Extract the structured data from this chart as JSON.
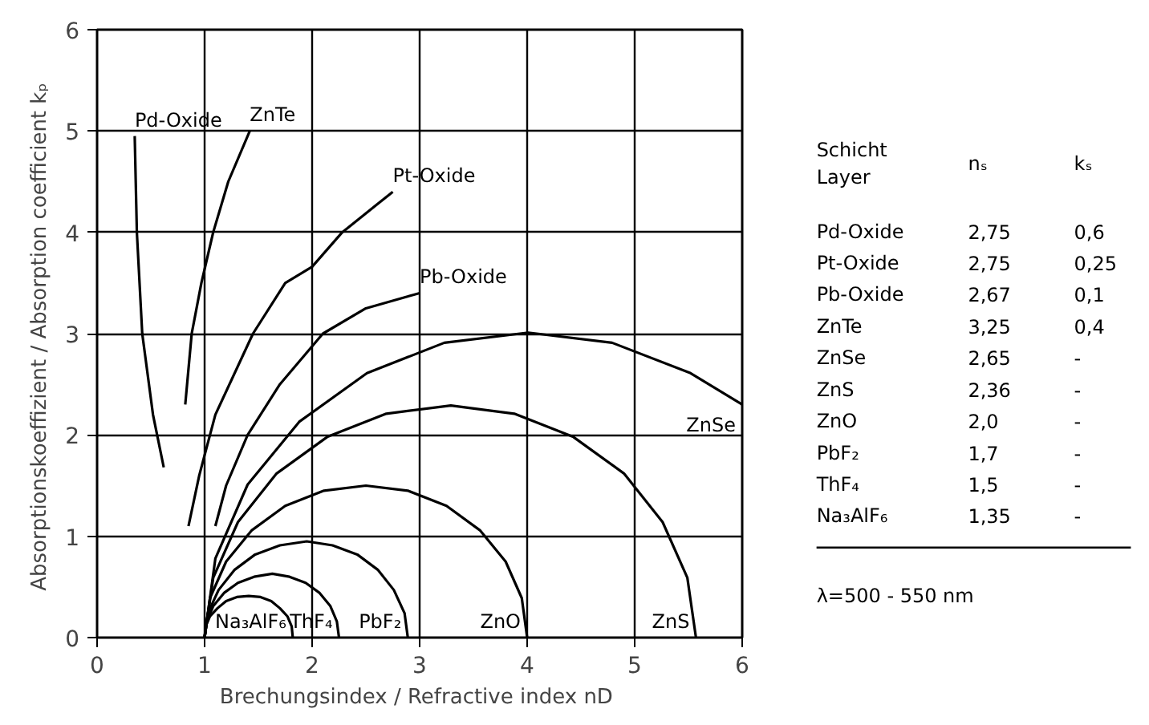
{
  "chart_data": {
    "type": "line",
    "xlabel": "Brechungsindex / Refractive index  nD",
    "ylabel": "Absorptionskoeffizient / Absorption coefficient  kₚ",
    "xlim": [
      0,
      6
    ],
    "ylim": [
      0,
      6
    ],
    "xticks": [
      0,
      1,
      2,
      3,
      4,
      5,
      6
    ],
    "yticks": [
      0,
      1,
      2,
      3,
      4,
      5,
      6
    ],
    "grid": true,
    "marker": "none",
    "line_style": "solid",
    "series": [
      {
        "name": "Pd-Oxide",
        "color": "#000000",
        "x": [
          0.62,
          0.52,
          0.42,
          0.37,
          0.35
        ],
        "values": [
          1.68,
          2.2,
          3.0,
          4.0,
          4.95
        ]
      },
      {
        "name": "ZnTe",
        "color": "#000000",
        "x": [
          0.82,
          0.88,
          0.97,
          1.08,
          1.22,
          1.42
        ],
        "values": [
          2.3,
          3.0,
          3.5,
          4.0,
          4.5,
          5.0
        ]
      },
      {
        "name": "Pt-Oxide",
        "color": "#000000",
        "x": [
          0.85,
          0.95,
          1.1,
          1.45,
          1.75,
          2.0,
          2.28,
          2.75
        ],
        "values": [
          1.1,
          1.6,
          2.2,
          3.0,
          3.5,
          3.66,
          4.0,
          4.4
        ]
      },
      {
        "name": "Pb-Oxide",
        "color": "#000000",
        "x": [
          1.1,
          1.2,
          1.4,
          1.7,
          2.1,
          2.5,
          3.0
        ],
        "values": [
          1.1,
          1.5,
          2.0,
          2.5,
          3.0,
          3.25,
          3.4
        ]
      },
      {
        "name": "ZnSe",
        "color": "#000000",
        "x": [
          1.0,
          1.1,
          1.4,
          1.88,
          2.51,
          3.23,
          4.01,
          4.79,
          5.52,
          6.0
        ],
        "values": [
          0,
          0.78,
          1.51,
          2.13,
          2.61,
          2.91,
          3.01,
          2.91,
          2.61,
          2.3
        ]
      },
      {
        "name": "ZnS",
        "color": "#000000",
        "x": [
          1.0,
          1.08,
          1.31,
          1.67,
          2.14,
          2.69,
          3.29,
          3.88,
          4.43,
          4.9,
          5.26,
          5.49,
          5.57
        ],
        "values": [
          0,
          0.59,
          1.14,
          1.62,
          1.98,
          2.21,
          2.29,
          2.21,
          1.98,
          1.62,
          1.14,
          0.59,
          0
        ]
      },
      {
        "name": "ZnO",
        "color": "#000000",
        "x": [
          1.0,
          1.05,
          1.2,
          1.44,
          1.75,
          2.11,
          2.5,
          2.89,
          3.25,
          3.56,
          3.8,
          3.95,
          4.0
        ],
        "values": [
          0,
          0.39,
          0.75,
          1.06,
          1.3,
          1.45,
          1.5,
          1.45,
          1.3,
          1.06,
          0.75,
          0.39,
          0
        ]
      },
      {
        "name": "PbF₂",
        "color": "#000000",
        "x": [
          1.0,
          1.03,
          1.13,
          1.28,
          1.47,
          1.7,
          1.95,
          2.19,
          2.42,
          2.61,
          2.76,
          2.86,
          2.89
        ],
        "values": [
          0,
          0.24,
          0.47,
          0.67,
          0.82,
          0.91,
          0.95,
          0.91,
          0.82,
          0.67,
          0.47,
          0.24,
          0
        ]
      },
      {
        "name": "ThF₄",
        "color": "#000000",
        "x": [
          1.0,
          1.02,
          1.08,
          1.18,
          1.31,
          1.46,
          1.63,
          1.79,
          1.94,
          2.07,
          2.17,
          2.23,
          2.25
        ],
        "values": [
          0,
          0.16,
          0.31,
          0.44,
          0.54,
          0.6,
          0.63,
          0.6,
          0.54,
          0.44,
          0.31,
          0.16,
          0
        ]
      },
      {
        "name": "Na₃AlF₆",
        "color": "#000000",
        "x": [
          1.0,
          1.01,
          1.05,
          1.12,
          1.2,
          1.3,
          1.41,
          1.52,
          1.62,
          1.7,
          1.77,
          1.81,
          1.82
        ],
        "values": [
          0,
          0.11,
          0.21,
          0.29,
          0.36,
          0.4,
          0.41,
          0.4,
          0.36,
          0.29,
          0.21,
          0.11,
          0
        ]
      }
    ],
    "annotations": [
      "Schicht\nLayer",
      "nₛ",
      "kₛ",
      "Pd-Oxide",
      "2,75",
      "0,6",
      "Pt-Oxide",
      "2,75",
      "0,25",
      "Pb-Oxide",
      "2,67",
      "0,1",
      "ZnTe",
      "3,25",
      "0,4",
      "ZnSe",
      "2,65",
      "-",
      "ZnS",
      "2,36",
      "-",
      "ZnO",
      "2,0",
      "-",
      "PbF₂",
      "1,7",
      "-",
      "ThF₄",
      "1,5",
      "-",
      "Na₃AlF₆",
      "1,35",
      "-",
      "λ=500 - 550 nm"
    ]
  }
}
